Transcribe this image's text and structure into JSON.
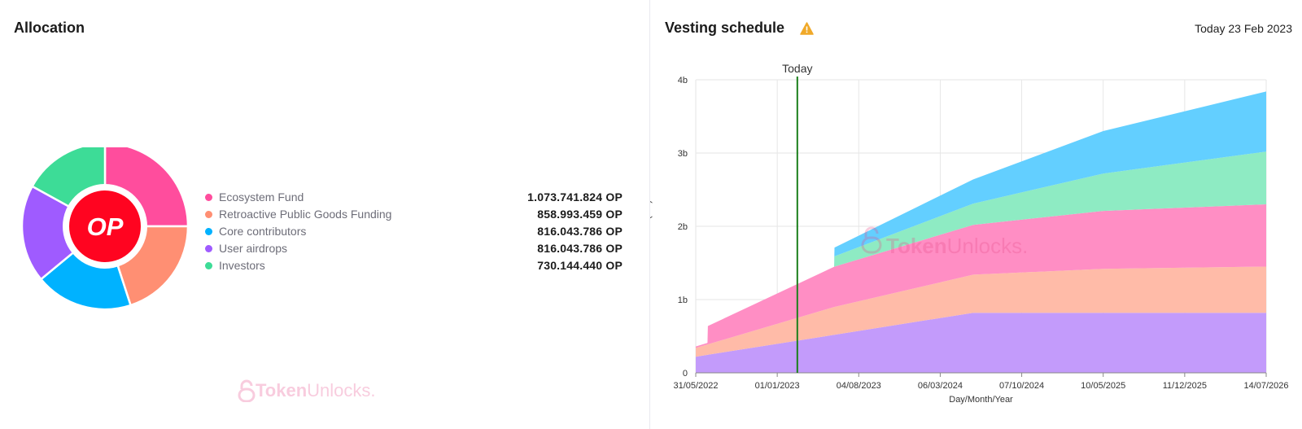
{
  "allocation": {
    "title": "Allocation",
    "center_label": "OP",
    "items": [
      {
        "label": "Ecosystem Fund",
        "value": "1.073.741.824 OP",
        "amount": 1073741824,
        "color": "#ff4d9d"
      },
      {
        "label": "Retroactive Public Goods Funding",
        "value": "858.993.459 OP",
        "amount": 858993459,
        "color": "#ff8f73"
      },
      {
        "label": "Core contributors",
        "value": "816.043.786 OP",
        "amount": 816043786,
        "color": "#00b2ff"
      },
      {
        "label": "User airdrops",
        "value": "816.043.786 OP",
        "amount": 816043786,
        "color": "#9f5bff"
      },
      {
        "label": "Investors",
        "value": "730.144.440 OP",
        "amount": 730144440,
        "color": "#3ddc97"
      }
    ]
  },
  "vesting": {
    "title": "Vesting schedule",
    "today_text": "Today 23 Feb 2023",
    "warning_icon": "warning-icon"
  },
  "watermark": {
    "bold": "Token",
    "light": "Unlocks."
  },
  "chart_data": [
    {
      "type": "pie",
      "title": "Allocation",
      "categories": [
        "Ecosystem Fund",
        "Retroactive Public Goods Funding",
        "Core contributors",
        "User airdrops",
        "Investors"
      ],
      "values": [
        1073741824,
        858993459,
        816043786,
        816043786,
        730144440
      ]
    },
    {
      "type": "area",
      "stacked": true,
      "title": "Vesting schedule",
      "xlabel": "Day/Month/Year",
      "ylabel": "Amount (OP)",
      "ylim": [
        0,
        4000000000
      ],
      "yticks": [
        0,
        1000000000,
        2000000000,
        3000000000,
        4000000000
      ],
      "ytick_labels": [
        "0",
        "1b",
        "2b",
        "3b",
        "4b"
      ],
      "xlim": [
        "2022-05-31",
        "2026-07-14"
      ],
      "xticks": [
        "2022-05-31",
        "2023-01-01",
        "2023-08-04",
        "2024-03-06",
        "2024-10-07",
        "2025-05-10",
        "2025-12-11",
        "2026-07-14"
      ],
      "xtick_labels": [
        "31/05/2022",
        "01/01/2023",
        "04/08/2023",
        "06/03/2024",
        "07/10/2024",
        "10/05/2025",
        "11/12/2025",
        "14/07/2026"
      ],
      "marker": {
        "label": "Today",
        "date": "2023-02-23",
        "color": "#1a7f1a"
      },
      "series": [
        {
          "name": "User airdrops",
          "color": "#c39bfb",
          "points": [
            [
              "2022-05-31",
              0.22
            ],
            [
              "2024-06-01",
              0.82
            ],
            [
              "2026-07-14",
              0.82
            ]
          ]
        },
        {
          "name": "Retroactive Public Goods Funding",
          "color": "#ffbba8",
          "points": [
            [
              "2022-05-31",
              0.12
            ],
            [
              "2023-06-01",
              0.38
            ],
            [
              "2024-06-01",
              0.52
            ],
            [
              "2025-05-10",
              0.6
            ],
            [
              "2026-07-14",
              0.63
            ]
          ]
        },
        {
          "name": "Ecosystem Fund",
          "color": "#ff8ec4",
          "points": [
            [
              "2022-05-31",
              0.02
            ],
            [
              "2022-07-01",
              0.02
            ],
            [
              "2022-07-02",
              0.25
            ],
            [
              "2023-06-01",
              0.55
            ],
            [
              "2024-06-01",
              0.68
            ],
            [
              "2025-05-10",
              0.79
            ],
            [
              "2026-07-14",
              0.85
            ]
          ]
        },
        {
          "name": "Investors",
          "color": "#8eebc3",
          "points": [
            [
              "2022-05-31",
              0
            ],
            [
              "2023-05-31",
              0
            ],
            [
              "2023-06-01",
              0.14
            ],
            [
              "2024-06-01",
              0.29
            ],
            [
              "2025-05-10",
              0.51
            ],
            [
              "2026-07-14",
              0.72
            ]
          ]
        },
        {
          "name": "Core contributors",
          "color": "#63cfff",
          "points": [
            [
              "2022-05-31",
              0
            ],
            [
              "2023-05-31",
              0
            ],
            [
              "2023-06-01",
              0.12
            ],
            [
              "2024-06-01",
              0.33
            ],
            [
              "2025-05-10",
              0.58
            ],
            [
              "2026-07-14",
              0.82
            ]
          ]
        }
      ],
      "values_unit": "billion OP (stacked increments)"
    }
  ]
}
